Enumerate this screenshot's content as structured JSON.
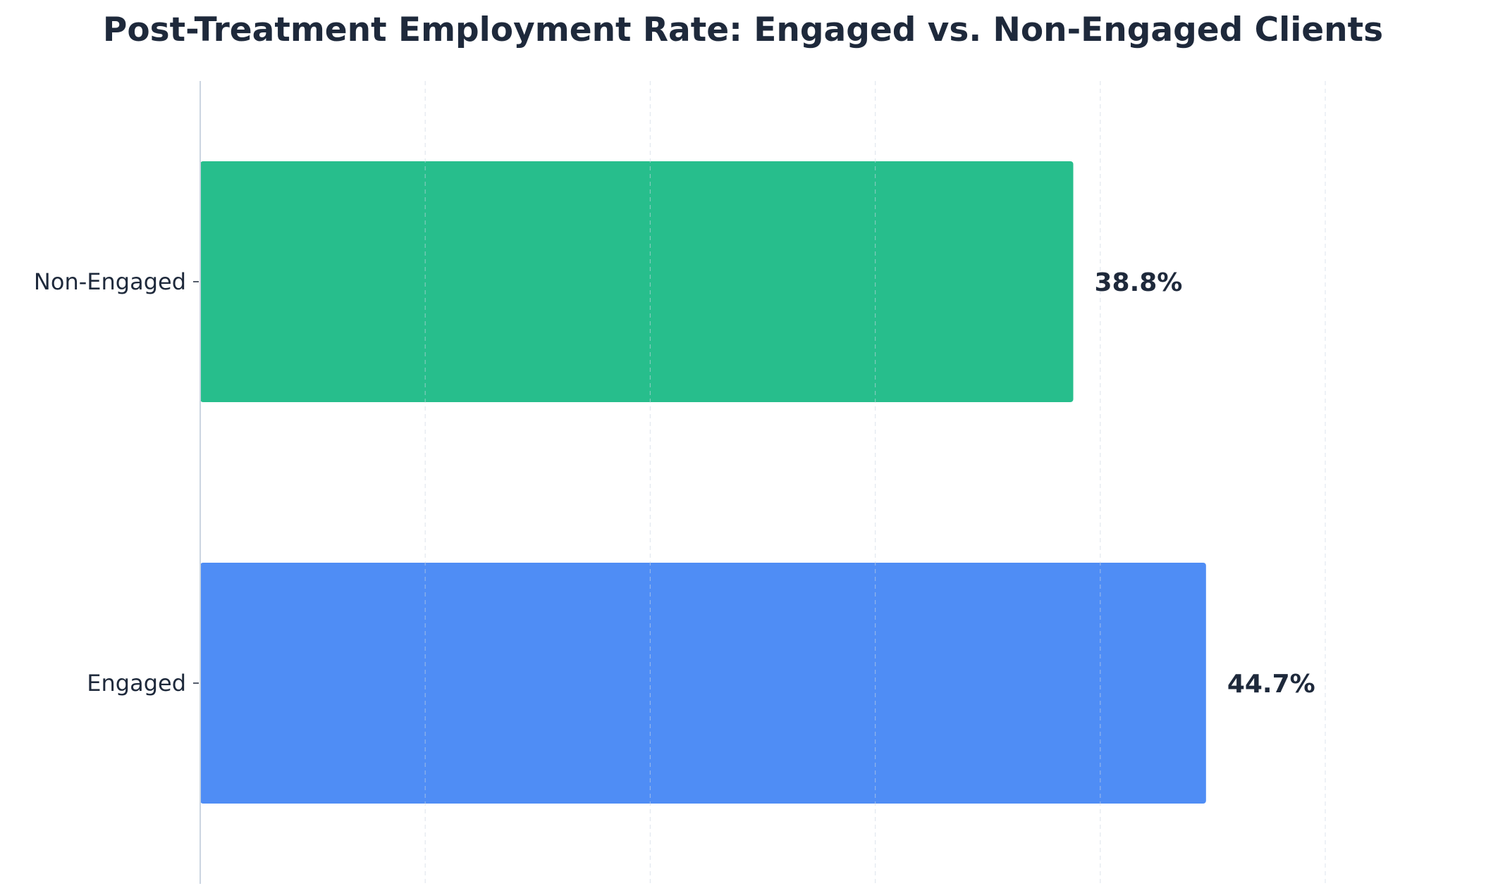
{
  "chart_data": {
    "type": "bar",
    "orientation": "horizontal",
    "title": "Post-Treatment Employment Rate: Engaged vs. Non-Engaged Clients",
    "categories": [
      "Non-Engaged",
      "Engaged"
    ],
    "values": [
      38.8,
      44.7
    ],
    "value_labels": [
      "38.8%",
      "44.7%"
    ],
    "colors": [
      "#27be8c",
      "#4f8df5"
    ],
    "xlim": [
      0,
      50
    ],
    "grid": true,
    "grid_style": "dashed vertical",
    "xlabel": "",
    "ylabel": ""
  }
}
